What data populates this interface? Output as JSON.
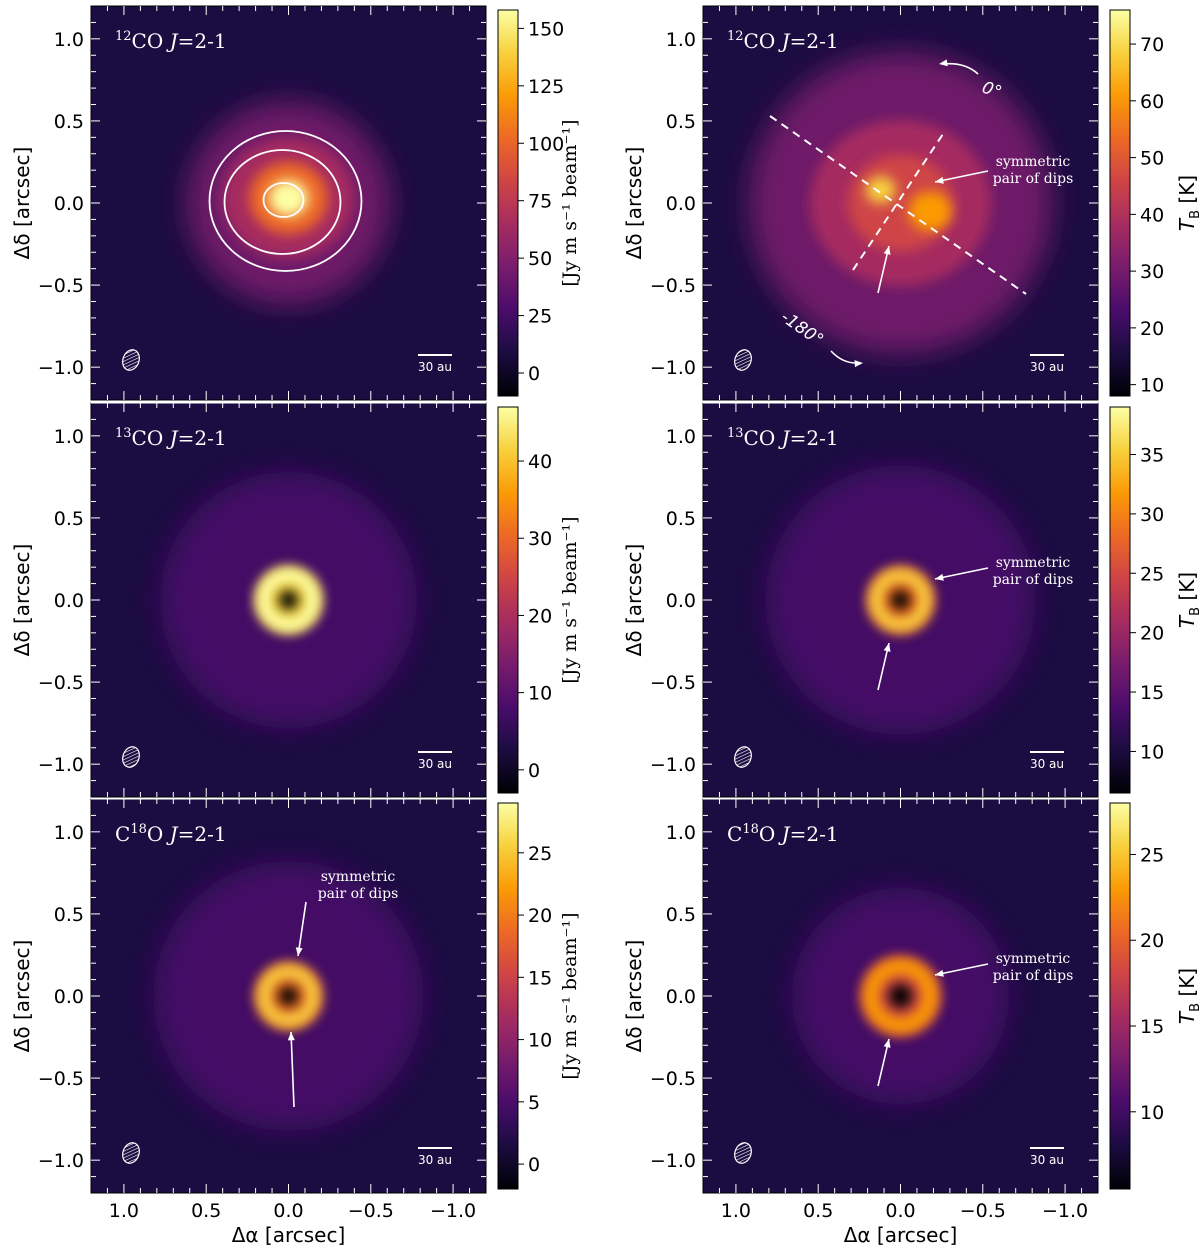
{
  "figure": {
    "x_axis_label": "Δα [arcsec]",
    "y_axis_label": "Δδ [arcsec]",
    "tick_labels": [
      "1.0",
      "0.5",
      "0.0",
      "−0.5",
      "−1.0"
    ],
    "scale_bar_label": "30 au",
    "annotation_dips": [
      "symmetric",
      "pair of dips"
    ],
    "annotation_zero": "0°",
    "annotation_180": "-180°",
    "colors": {
      "inferno": [
        "#000004",
        "#1b0c41",
        "#4a0c6b",
        "#781c6d",
        "#a52c60",
        "#cf4446",
        "#ed6925",
        "#fb9b06",
        "#f7d13d",
        "#fcffa4"
      ],
      "annotation": "#ffffff"
    }
  },
  "panels": [
    {
      "id": "12co-integrated",
      "line": "12CO J=2-1",
      "label_parts": {
        "iso_prefix": "",
        "iso_sup": "12",
        "molecule": "CO ",
        "j": "J",
        "rest": "=2-1"
      },
      "colorbar": {
        "label": "[Jy m s⁻¹ beam⁻¹]",
        "min": -10,
        "max": 158,
        "ticks": [
          0,
          25,
          50,
          75,
          100,
          125,
          150
        ]
      }
    },
    {
      "id": "12co-peak",
      "line": "12CO J=2-1",
      "label_parts": {
        "iso_prefix": "",
        "iso_sup": "12",
        "molecule": "CO ",
        "j": "J",
        "rest": "=2-1"
      },
      "colorbar": {
        "label": "T_B [K]",
        "min": 8,
        "max": 76,
        "ticks": [
          10,
          20,
          30,
          40,
          50,
          60,
          70
        ]
      }
    },
    {
      "id": "13co-integrated",
      "line": "13CO J=2-1",
      "label_parts": {
        "iso_prefix": "",
        "iso_sup": "13",
        "molecule": "CO ",
        "j": "J",
        "rest": "=2-1"
      },
      "colorbar": {
        "label": "[Jy m s⁻¹ beam⁻¹]",
        "min": -3,
        "max": 47,
        "ticks": [
          0,
          10,
          20,
          30,
          40
        ]
      }
    },
    {
      "id": "13co-peak",
      "line": "13CO J=2-1",
      "label_parts": {
        "iso_prefix": "",
        "iso_sup": "13",
        "molecule": "CO ",
        "j": "J",
        "rest": "=2-1"
      },
      "colorbar": {
        "label": "T_B [K]",
        "min": 6.5,
        "max": 39,
        "ticks": [
          10,
          15,
          20,
          25,
          30,
          35
        ]
      }
    },
    {
      "id": "c18o-integrated",
      "line": "C18O J=2-1",
      "label_parts": {
        "iso_prefix": "C",
        "iso_sup": "18",
        "molecule": "O ",
        "j": "J",
        "rest": "=2-1"
      },
      "colorbar": {
        "label": "[Jy m s⁻¹ beam⁻¹]",
        "min": -2,
        "max": 29,
        "ticks": [
          0,
          5,
          10,
          15,
          20,
          25
        ]
      }
    },
    {
      "id": "c18o-peak",
      "line": "C18O J=2-1",
      "label_parts": {
        "iso_prefix": "C",
        "iso_sup": "18",
        "molecule": "O ",
        "j": "J",
        "rest": "=2-1"
      },
      "colorbar": {
        "label": "T_B [K]",
        "min": 5.5,
        "max": 28,
        "ticks": [
          10,
          15,
          20,
          25
        ]
      }
    }
  ]
}
